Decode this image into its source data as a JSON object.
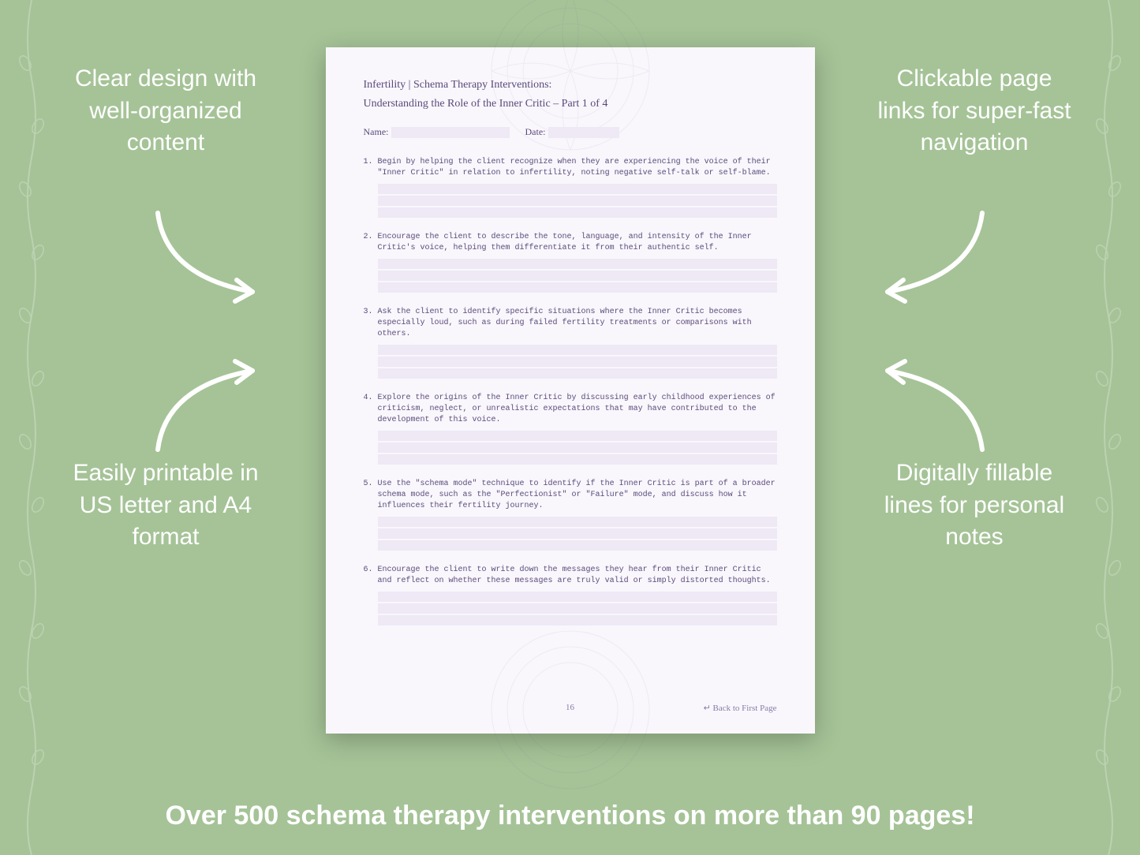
{
  "background_color": "#a5c397",
  "page_color": "#f9f7fc",
  "fill_color": "#eee9f5",
  "text_color": "#5a4a7a",
  "callouts": {
    "top_left": "Clear design with well-organized content",
    "top_right": "Clickable page links for super-fast navigation",
    "bottom_left": "Easily printable in US letter and A4 format",
    "bottom_right": "Digitally fillable lines for personal notes"
  },
  "worksheet": {
    "title": "Infertility | Schema Therapy Interventions:",
    "subtitle": "Understanding the Role of the Inner Critic  – Part 1 of 4",
    "name_label": "Name:",
    "date_label": "Date:",
    "items": [
      {
        "num": "1.",
        "text": "Begin by helping the client recognize when they are experiencing the voice of their \"Inner Critic\" in relation to infertility, noting negative self-talk or self-blame."
      },
      {
        "num": "2.",
        "text": "Encourage the client to describe the tone, language, and intensity of the Inner Critic's voice, helping them differentiate it from their authentic self."
      },
      {
        "num": "3.",
        "text": "Ask the client to identify specific situations where the Inner Critic becomes especially loud, such as during failed fertility treatments or comparisons with others."
      },
      {
        "num": "4.",
        "text": "Explore the origins of the Inner Critic by discussing early childhood experiences of criticism, neglect, or unrealistic expectations that may have contributed to the development of this voice."
      },
      {
        "num": "5.",
        "text": "Use the \"schema mode\" technique to identify if the Inner Critic is part of a broader schema mode, such as the \"Perfectionist\" or \"Failure\" mode, and discuss how it influences their fertility journey."
      },
      {
        "num": "6.",
        "text": "Encourage the client to write down the messages they hear from their Inner Critic and reflect on whether these messages are truly valid or simply distorted thoughts."
      }
    ],
    "page_number": "16",
    "back_link": "↵ Back to First Page"
  },
  "banner": "Over 500 schema therapy interventions on more than 90 pages!"
}
